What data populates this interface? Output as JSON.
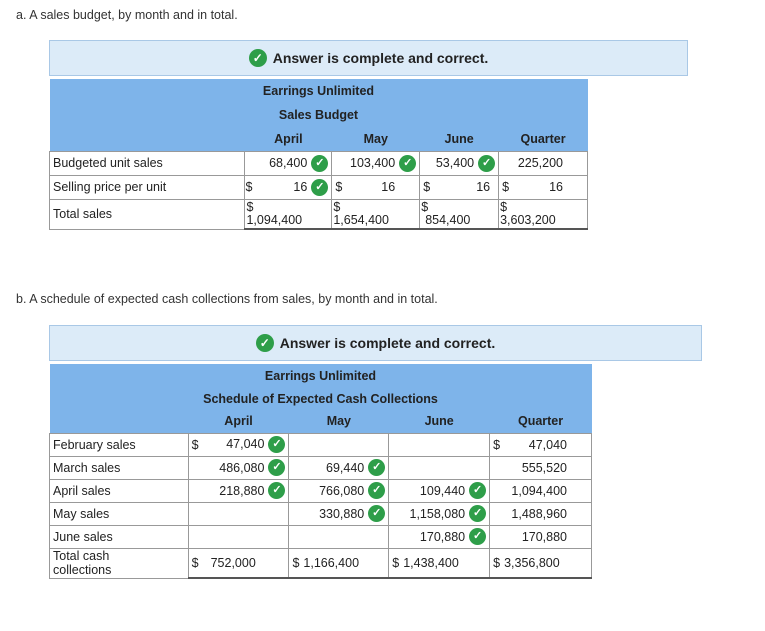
{
  "part_a": {
    "question": "a. A sales budget, by month and in total.",
    "banner": "Answer is complete and correct.",
    "company": "Earrings Unlimited",
    "title": "Sales Budget",
    "columns": [
      "April",
      "May",
      "June",
      "Quarter"
    ],
    "rows": {
      "units": {
        "label": "Budgeted unit sales",
        "values": [
          "68,400",
          "103,400",
          "53,400",
          "225,200"
        ]
      },
      "price": {
        "label": "Selling price per unit",
        "currency": "$",
        "values": [
          "16",
          "16",
          "16",
          "16"
        ]
      },
      "total": {
        "label": "Total sales",
        "currency": "$",
        "values": [
          "1,094,400",
          "1,654,400",
          "854,400",
          "3,603,200"
        ]
      }
    }
  },
  "part_b": {
    "question": "b. A schedule of expected cash collections from sales, by month and in total.",
    "banner": "Answer is complete and correct.",
    "company": "Earrings Unlimited",
    "title": "Schedule of Expected Cash Collections",
    "columns": [
      "April",
      "May",
      "June",
      "Quarter"
    ],
    "currency": "$",
    "rows": {
      "feb": {
        "label": "February sales",
        "april": "47,040",
        "quarter": "47,040"
      },
      "mar": {
        "label": "March sales",
        "april": "486,080",
        "may": "69,440",
        "quarter": "555,520"
      },
      "apr": {
        "label": "April sales",
        "april": "218,880",
        "may": "766,080",
        "june": "109,440",
        "quarter": "1,094,400"
      },
      "may": {
        "label": "May sales",
        "may": "330,880",
        "june": "1,158,080",
        "quarter": "1,488,960"
      },
      "jun": {
        "label": "June sales",
        "june": "170,880",
        "quarter": "170,880"
      },
      "total": {
        "label_line1": "Total cash",
        "label_line2": "collections",
        "april": "752,000",
        "may": "1,166,400",
        "june": "1,438,400",
        "quarter": "3,356,800"
      }
    }
  },
  "icons": {
    "check": "✓"
  },
  "colors": {
    "header_blue": "#7eb4ea",
    "banner_bg": "#dcebf8",
    "check_green": "#2e9e49"
  }
}
